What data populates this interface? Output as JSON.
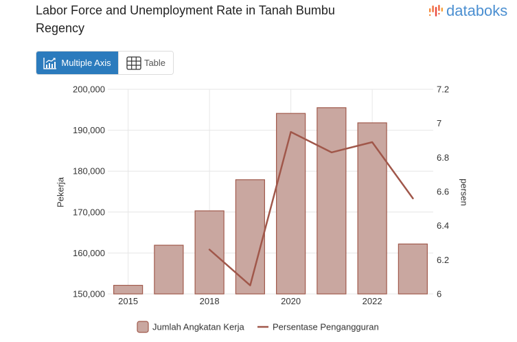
{
  "header": {
    "logo_text": "databoks"
  },
  "toolbar": {
    "multiple_axis_label": "Multiple Axis",
    "multiple_axis_active": true,
    "table_label": "Table",
    "table_active": false
  },
  "icons": {
    "logo": "databoks-logo-icon",
    "multiple_axis": "line-chart-icon",
    "table": "table-grid-icon"
  },
  "colors": {
    "accent": "#2b7bbd",
    "title_text": "#222222",
    "logo_text": "#4b8fd1",
    "logo_icon": "#ef5f3c",
    "bar_fill": "#c9a7a0",
    "bar_stroke": "#a0594b",
    "line": "#a0574a",
    "grid": "#e6e6e6",
    "axis_text": "#333333"
  },
  "chart_data": {
    "type": "bar",
    "title": "Labor Force and Unemployment Rate in Tanah Bumbu Regency",
    "categories": [
      "2015",
      "",
      "2018",
      "",
      "2020",
      "",
      "2022",
      ""
    ],
    "series": [
      {
        "name": "Jumlah Angkatan Kerja",
        "type": "bar",
        "y_axis": "left",
        "values": [
          152100,
          161900,
          170300,
          177900,
          194100,
          195500,
          191800,
          162200
        ]
      },
      {
        "name": "Persentase Pengangguran",
        "type": "line",
        "y_axis": "right",
        "values": [
          null,
          null,
          6.26,
          6.05,
          6.95,
          6.83,
          6.89,
          6.56
        ]
      }
    ],
    "y_left": {
      "label": "Pekerja",
      "range": [
        150000,
        200000
      ],
      "ticks": [
        150000,
        160000,
        170000,
        180000,
        190000,
        200000
      ],
      "tick_labels": [
        "150,000",
        "160,000",
        "170,000",
        "180,000",
        "190,000",
        "200,000"
      ]
    },
    "y_right": {
      "label": "persen",
      "range": [
        6,
        7.2
      ],
      "ticks": [
        6,
        6.2,
        6.4,
        6.6,
        6.8,
        7,
        7.2
      ],
      "tick_labels": [
        "6",
        "6.2",
        "6.4",
        "6.6",
        "6.8",
        "7",
        "7.2"
      ]
    },
    "grid": true,
    "legend": "bottom-center"
  }
}
